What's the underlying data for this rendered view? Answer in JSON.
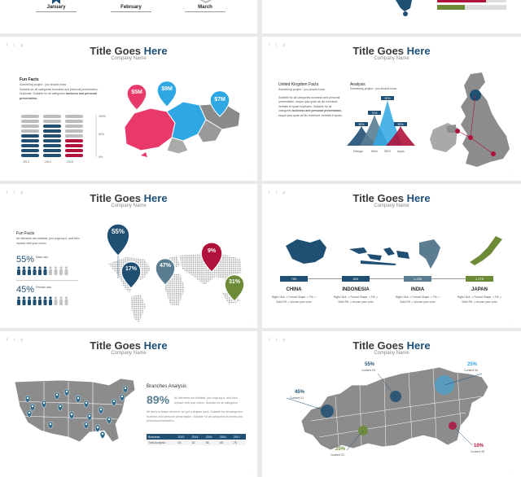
{
  "slide_title": {
    "main": "Title Goes ",
    "accent": "Here",
    "subtitle": "Company Name"
  },
  "social_icons": [
    "facebook-icon",
    "twitter-icon",
    "pinterest-icon"
  ],
  "top_strip": {
    "months": [
      "January",
      "February",
      "March"
    ]
  },
  "slide_singapore": {
    "heading": "Fun Facts",
    "line1": "Something project : you should know",
    "body": "Suitable for all categories business and personal presentation, Duplicate. Suitable for all categories",
    "bold_tail": "business and personal presentation,",
    "pins": [
      "$5M",
      "$9M",
      "$7M"
    ],
    "axis": [
      "100%",
      "50%",
      "0%"
    ],
    "years": [
      "2013",
      "2014",
      "2015"
    ],
    "bar_fill": [
      0.55,
      0.75,
      0.4
    ]
  },
  "slide_uk": {
    "heading": "United Kingdom Facts",
    "line1": "Something project : you should know",
    "body": "Suitable for all categories business and personal presentation, eaque ipsa quae ab illo inventore veritatis et quasi explicabo. Suitable for all categories",
    "bold_tail": "business and personal presentation,",
    "body2": "eaque ipsa quae ab illo inventore veritatis et quasi.",
    "analysis_heading": "Analysis",
    "analysis_line": "Something project : you should know",
    "cats": [
      "Design",
      "Web",
      "SEO",
      "Apps"
    ],
    "peaks": [
      "50%",
      "70%",
      "90%",
      "50%"
    ]
  },
  "slide_world": {
    "heading": "Fun Facts",
    "line1": "All elements are editable, just ungroup it, and then replace with your colors",
    "stat1": "55%",
    "stat1_label": "Male user",
    "stat2": "45%",
    "stat2_label": "Female user",
    "pins": [
      "55%",
      "17%",
      "47%",
      "9%",
      "31%"
    ]
  },
  "slide_countries": {
    "countries": [
      {
        "name": "CHINA",
        "value": "759"
      },
      {
        "name": "INDONESIA",
        "value": "825"
      },
      {
        "name": "INDIA",
        "value": "1,235"
      },
      {
        "name": "JAPAN",
        "value": "1,275"
      }
    ],
    "caption1": "Right Click -> Format Shape -> Fill ->",
    "caption2": "Solid Fill -> choose your color"
  },
  "slide_usa": {
    "heading": "Branches Analysis",
    "big_stat": "89%",
    "line1": "All elements are editable, just ungroup it, and then replace with your colors. Suitable for all categories",
    "line2": "All items is shape element, we got a shapes pack. Suitable for all categories business and personal presentation. Suitable for all categories business and personal presentation.",
    "table_header": [
      "Business",
      "2013",
      "2014",
      "2015",
      "2016",
      "2017"
    ],
    "table_row": [
      "Total Analysis",
      "33",
      "42",
      "56",
      "65",
      "78"
    ]
  },
  "slide_russia": {
    "callouts": [
      {
        "value": "45%",
        "label": "Content 01"
      },
      {
        "value": "25%",
        "label": "Content 02"
      },
      {
        "value": "55%",
        "label": "Content 03"
      },
      {
        "value": "25%",
        "label": "Content 04"
      },
      {
        "value": "10%",
        "label": "Content 05"
      }
    ]
  },
  "colors": {
    "dark_blue": "#1f4f73",
    "blue": "#2ea7e3",
    "pink": "#e8396a",
    "red": "#b0123b",
    "slate": "#5a7d92",
    "green": "#6d8b36",
    "map_gray": "#8c8c8c"
  }
}
